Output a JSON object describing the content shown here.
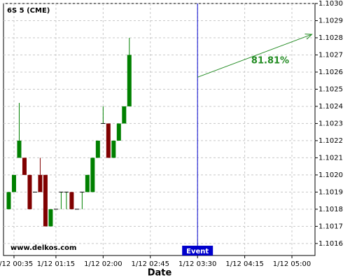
{
  "chart_data": {
    "type": "candlestick",
    "title": "6S 5 (CME)",
    "watermark": "www.delkos.com",
    "x_label": "Date",
    "x": [
      "1/12 00:30",
      "1/12 00:35",
      "1/12 00:40",
      "1/12 00:45",
      "1/12 00:50",
      "1/12 00:55",
      "1/12 01:00",
      "1/12 01:05",
      "1/12 01:10",
      "1/12 01:15",
      "1/12 01:20",
      "1/12 01:25",
      "1/12 01:30",
      "1/12 01:35",
      "1/12 01:40",
      "1/12 01:45",
      "1/12 01:50",
      "1/12 01:55",
      "1/12 02:00",
      "1/12 02:05",
      "1/12 02:10",
      "1/12 02:15",
      "1/12 02:20",
      "1/12 02:25"
    ],
    "open": [
      1.1018,
      1.1019,
      1.1021,
      1.1021,
      1.102,
      1.1019,
      1.102,
      1.102,
      1.1017,
      1.1018,
      1.1019,
      1.1019,
      1.1019,
      1.1018,
      1.1019,
      1.1019,
      1.1019,
      1.1021,
      1.1023,
      1.1023,
      1.1021,
      1.1022,
      1.1023,
      1.1024
    ],
    "high": [
      1.1019,
      1.102,
      1.10242,
      1.1021,
      1.102,
      1.1019,
      1.1021,
      1.102,
      1.1018,
      1.1018,
      1.1019,
      1.1019,
      1.1019,
      1.1018,
      1.1019,
      1.102,
      1.1021,
      1.1022,
      1.1024,
      1.1023,
      1.1022,
      1.1023,
      1.1024,
      1.1028
    ],
    "low": [
      1.1018,
      1.1019,
      1.1021,
      1.102,
      1.1018,
      1.1019,
      1.1019,
      1.1017,
      1.1017,
      1.1018,
      1.1018,
      1.1018,
      1.1018,
      1.1018,
      1.1018,
      1.1019,
      1.1019,
      1.1021,
      1.1023,
      1.1021,
      1.1021,
      1.1022,
      1.1023,
      1.1024
    ],
    "close": [
      1.1019,
      1.102,
      1.1022,
      1.102,
      1.1018,
      1.1019,
      1.1019,
      1.1017,
      1.1018,
      1.1018,
      1.1019,
      1.1019,
      1.1018,
      1.1018,
      1.1019,
      1.102,
      1.1021,
      1.1022,
      1.1023,
      1.1021,
      1.1022,
      1.1023,
      1.1024,
      1.1027
    ],
    "up_color": "#008000",
    "down_color": "#800000",
    "xlim": [
      "1/12 00:25",
      "1/12 05:22"
    ],
    "xticks": [
      "1/12 00:35",
      "1/12 01:15",
      "1/12 02:00",
      "1/12 02:45",
      "1/12 03:30",
      "1/12 04:15",
      "1/12 05:00"
    ],
    "ylim": [
      1.10153,
      1.103
    ],
    "yticks": [
      {
        "value": 1.1016,
        "label": "1.1016"
      },
      {
        "value": 1.1017,
        "label": "1.1017"
      },
      {
        "value": 1.1018,
        "label": "1.1018"
      },
      {
        "value": 1.1019,
        "label": "1.1019"
      },
      {
        "value": 1.102,
        "label": "1.1020"
      },
      {
        "value": 1.1021,
        "label": "1.1021"
      },
      {
        "value": 1.1022,
        "label": "1.1022"
      },
      {
        "value": 1.1023,
        "label": "1.1023"
      },
      {
        "value": 1.1024,
        "label": "1.1024"
      },
      {
        "value": 1.1025,
        "label": "1.1025"
      },
      {
        "value": 1.1026,
        "label": "1.1026"
      },
      {
        "value": 1.1027,
        "label": "1.1027"
      },
      {
        "value": 1.1028,
        "label": "1.1028"
      },
      {
        "value": 1.1029,
        "label": "1.1029"
      },
      {
        "value": 1.103,
        "label": "1.1030"
      }
    ],
    "grid": true,
    "event": {
      "x": "1/12 03:30",
      "label": "Event",
      "color": "#0000cc"
    },
    "arrow": {
      "x0": "1/12 03:30",
      "y0": 1.10257,
      "x1": "1/12 05:19",
      "y1": 1.10282,
      "label": "81.81%",
      "color": "#228b22"
    }
  }
}
